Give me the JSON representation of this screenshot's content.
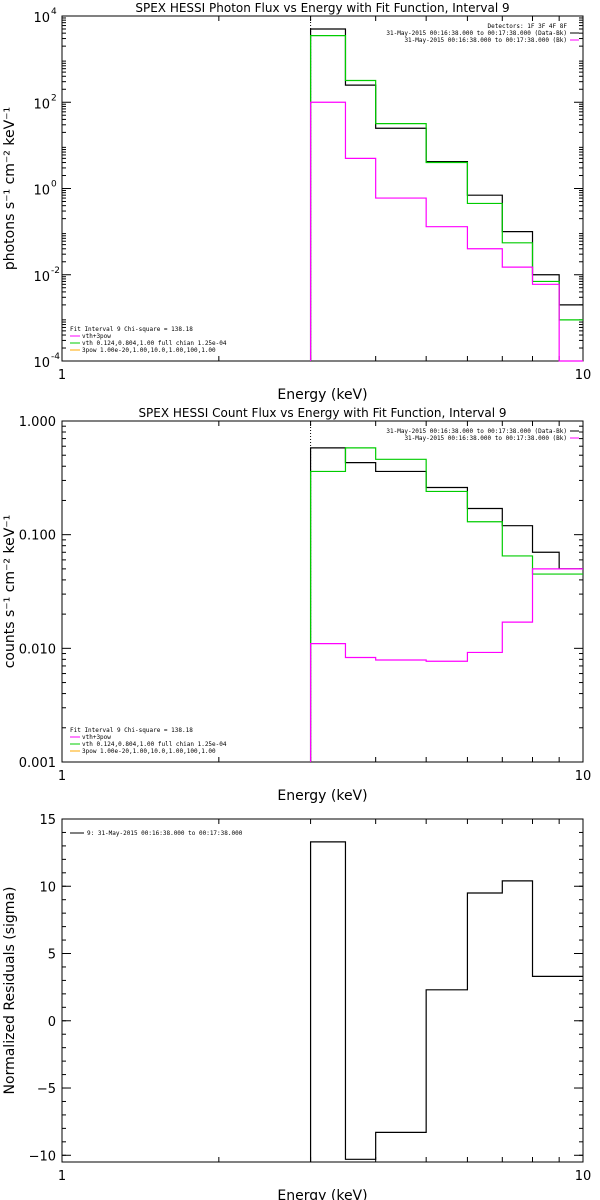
{
  "colors": {
    "data": "#000000",
    "total": "#ff00ff",
    "vth": "#00cc00",
    "3pow": "#ffaa00"
  },
  "chart_data": [
    {
      "type": "line",
      "title": "SPEX HESSI Photon Flux vs Energy with Fit Function, Interval 9",
      "xlabel": "Energy (keV)",
      "ylabel": "photons s⁻¹ cm⁻² keV⁻¹",
      "xscale": "log",
      "yscale": "log",
      "xlim": [
        1,
        10
      ],
      "ylim": [
        0.0001,
        10000
      ],
      "xticks": [
        {
          "v": 1,
          "t": "1"
        },
        {
          "v": 10,
          "t": "10"
        }
      ],
      "yticks": [
        {
          "v": 10000,
          "b": "10",
          "e": "4"
        },
        {
          "v": 100,
          "b": "10",
          "e": "2"
        },
        {
          "v": 1,
          "b": "10",
          "e": "0"
        },
        {
          "v": 0.01,
          "b": "10",
          "e": "-2"
        },
        {
          "v": 0.0001,
          "b": "10",
          "e": "-4"
        }
      ],
      "vline": 3,
      "legend_top": [
        "Detectors: 1F 3F 4F 8F",
        "31-May-2015 00:16:38.000 to 00:17:38.000 (Data-Bk)",
        "31-May-2015 00:16:38.000 to 00:17:38.000 (Bk)"
      ],
      "legend_bottom": [
        "Fit Interval  9    Chi-square = 138.18",
        "vth+3pow",
        "vth 0.124,0.804,1.00  full chian 1.25e-04",
        "3pow 1.00e-20,1.00,10.0,1.00,100,1.00"
      ],
      "edges": [
        3,
        3.5,
        4,
        5,
        6,
        7,
        8,
        9,
        10
      ],
      "series": [
        {
          "role": "data",
          "values": [
            5000,
            250,
            25,
            4.2,
            0.7,
            0.1,
            0.01,
            0.002
          ]
        },
        {
          "role": "vth",
          "values": [
            3500,
            320,
            32,
            4.0,
            0.45,
            0.055,
            0.007,
            0.0009
          ]
        },
        {
          "role": "total",
          "values": [
            100,
            5,
            0.6,
            0.13,
            0.04,
            0.015,
            0.006,
            0.0001
          ]
        }
      ]
    },
    {
      "type": "line",
      "title": "SPEX HESSI Count Flux vs Energy with Fit Function, Interval 9",
      "xlabel": "Energy (keV)",
      "ylabel": "counts s⁻¹ cm⁻² keV⁻¹",
      "xscale": "log",
      "yscale": "log",
      "xlim": [
        1,
        10
      ],
      "ylim": [
        0.001,
        1.0
      ],
      "xticks": [
        {
          "v": 1,
          "t": "1"
        },
        {
          "v": 10,
          "t": "10"
        }
      ],
      "yticks": [
        {
          "v": 1.0,
          "t": "1.000"
        },
        {
          "v": 0.1,
          "t": "0.100"
        },
        {
          "v": 0.01,
          "t": "0.010"
        },
        {
          "v": 0.001,
          "t": "0.001"
        }
      ],
      "vline": 3,
      "legend_top": [
        "31-May-2015 00:16:38.000 to 00:17:38.000 (Data-Bk)",
        "31-May-2015 00:16:38.000 to 00:17:38.000 (Bk)"
      ],
      "legend_bottom": [
        "Fit Interval  9    Chi-square = 138.18",
        "vth+3pow",
        "vth 0.124,0.804,1.00  full chian 1.25e-04",
        "3pow 1.00e-20,1.00,10.0,1.00,100,1.00"
      ],
      "edges": [
        3,
        3.5,
        4,
        5,
        6,
        7,
        8,
        9,
        10
      ],
      "series": [
        {
          "role": "data",
          "values": [
            0.58,
            0.43,
            0.36,
            0.26,
            0.17,
            0.12,
            0.07,
            0.05
          ]
        },
        {
          "role": "vth",
          "values": [
            0.36,
            0.58,
            0.46,
            0.24,
            0.13,
            0.065,
            0.045,
            0.045
          ]
        },
        {
          "role": "total",
          "values": [
            0.011,
            0.0083,
            0.0079,
            0.0077,
            0.0092,
            0.017,
            0.05,
            0.05
          ]
        }
      ]
    },
    {
      "type": "line",
      "title": "",
      "xlabel": "Energy (keV)",
      "ylabel": "Normalized Residuals (sigma)",
      "xscale": "log",
      "yscale": "linear",
      "xlim": [
        1,
        10
      ],
      "ylim": [
        -10.5,
        15
      ],
      "xticks": [
        {
          "v": 1,
          "t": "1"
        },
        {
          "v": 10,
          "t": "10"
        }
      ],
      "yticks": [
        {
          "v": 15,
          "t": "15"
        },
        {
          "v": 10,
          "t": "10"
        },
        {
          "v": 5,
          "t": "5"
        },
        {
          "v": 0,
          "t": "0"
        },
        {
          "v": -5,
          "t": "−5"
        },
        {
          "v": -10,
          "t": "−10"
        }
      ],
      "legend_top": [
        "9: 31-May-2015 00:16:38.000 to 00:17:38.000"
      ],
      "legend_bottom": [],
      "edges": [
        3,
        3.5,
        4,
        5,
        6,
        7,
        8,
        9,
        10
      ],
      "series": [
        {
          "role": "data",
          "values": [
            13.3,
            -10.3,
            -8.3,
            2.3,
            9.5,
            10.4,
            3.3,
            3.3
          ]
        }
      ]
    }
  ]
}
